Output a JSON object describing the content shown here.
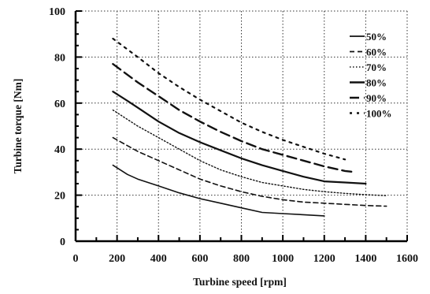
{
  "chart_data": {
    "type": "line",
    "xlabel": "Turbine speed [rpm]",
    "ylabel": "Turbine torque [Nm]",
    "xlim": [
      0,
      1600
    ],
    "ylim": [
      0,
      100
    ],
    "xticks": [
      "0",
      "200",
      "400",
      "600",
      "800",
      "1000",
      "1200",
      "1400",
      "1600"
    ],
    "yticks": [
      "0",
      "20",
      "40",
      "60",
      "80",
      "100"
    ],
    "grid": true,
    "legend_position": "top-right",
    "series": [
      {
        "name": "50%",
        "x": [
          180,
          250,
          300,
          400,
          500,
          600,
          700,
          800,
          900,
          1000,
          1100,
          1200
        ],
        "y": [
          33,
          29,
          27,
          24,
          21,
          18.5,
          16.5,
          14.5,
          12.5,
          12,
          11.5,
          11
        ]
      },
      {
        "name": "60%",
        "x": [
          180,
          300,
          400,
          500,
          600,
          700,
          800,
          900,
          1000,
          1100,
          1200,
          1300,
          1400,
          1500
        ],
        "y": [
          45,
          39,
          35,
          31,
          27,
          24,
          21.5,
          19.5,
          18,
          17,
          16.5,
          16,
          15.5,
          15.2
        ]
      },
      {
        "name": "70%",
        "x": [
          180,
          300,
          400,
          500,
          600,
          700,
          800,
          900,
          1000,
          1100,
          1200,
          1300,
          1400,
          1500
        ],
        "y": [
          57,
          50,
          45,
          40,
          35,
          31,
          28,
          25.5,
          24,
          22.5,
          21.5,
          20.8,
          20.2,
          19.8
        ]
      },
      {
        "name": "80%",
        "x": [
          180,
          250,
          300,
          400,
          500,
          600,
          700,
          800,
          900,
          1000,
          1100,
          1200,
          1300,
          1400
        ],
        "y": [
          65,
          61,
          58,
          52,
          47,
          43,
          39.5,
          36,
          33,
          30.5,
          28,
          26,
          25.5,
          25
        ]
      },
      {
        "name": "90%",
        "x": [
          180,
          300,
          400,
          500,
          600,
          700,
          800,
          900,
          1000,
          1100,
          1200,
          1300,
          1350
        ],
        "y": [
          77,
          69,
          63,
          57,
          52,
          47.5,
          43.5,
          40,
          37.5,
          35,
          32.5,
          30.5,
          30
        ]
      },
      {
        "name": "100%",
        "x": [
          180,
          300,
          400,
          500,
          600,
          700,
          800,
          900,
          1000,
          1100,
          1200,
          1300
        ],
        "y": [
          88,
          80,
          73,
          67,
          61.5,
          56.5,
          51.5,
          47.5,
          44,
          41,
          38,
          35.5
        ]
      }
    ]
  }
}
